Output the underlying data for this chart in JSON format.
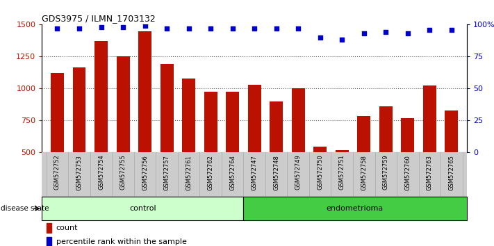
{
  "title": "GDS3975 / ILMN_1703132",
  "samples": [
    "GSM572752",
    "GSM572753",
    "GSM572754",
    "GSM572755",
    "GSM572756",
    "GSM572757",
    "GSM572761",
    "GSM572762",
    "GSM572764",
    "GSM572747",
    "GSM572748",
    "GSM572749",
    "GSM572750",
    "GSM572751",
    "GSM572758",
    "GSM572759",
    "GSM572760",
    "GSM572763",
    "GSM572765"
  ],
  "counts": [
    1120,
    1165,
    1370,
    1250,
    1450,
    1195,
    1080,
    975,
    975,
    1030,
    900,
    1005,
    545,
    520,
    785,
    860,
    770,
    1025,
    830
  ],
  "percentiles": [
    97,
    97,
    98,
    98,
    99,
    97,
    97,
    97,
    97,
    97,
    97,
    97,
    90,
    88,
    93,
    94,
    93,
    96,
    96
  ],
  "control_count": 9,
  "endometrioma_count": 10,
  "ylim_left": [
    500,
    1500
  ],
  "ylim_right": [
    0,
    100
  ],
  "yticks_left": [
    500,
    750,
    1000,
    1250,
    1500
  ],
  "yticks_right": [
    0,
    25,
    50,
    75,
    100
  ],
  "ytick_labels_right": [
    "0",
    "25",
    "50",
    "75",
    "100%"
  ],
  "bar_color": "#bb1100",
  "dot_color": "#0000cc",
  "control_bg": "#ccffcc",
  "endometrioma_bg": "#44cc44",
  "tick_label_area_bg": "#cccccc",
  "legend_count_label": "count",
  "legend_pct_label": "percentile rank within the sample",
  "group_label": "disease state",
  "control_label": "control",
  "endometrioma_label": "endometrioma",
  "grid_color": "#000000",
  "grid_alpha": 0.6
}
